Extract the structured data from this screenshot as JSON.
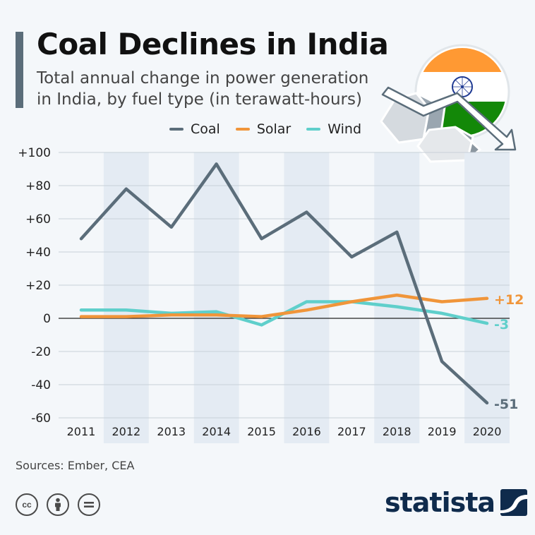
{
  "header": {
    "title": "Coal Declines in India",
    "subtitle": "Total annual change in power generation in India, by fuel type (in terawatt-hours)"
  },
  "footer": {
    "source": "Sources: Ember, CEA",
    "brand": "statista",
    "license_icons": [
      "creative-commons-icon",
      "attribution-icon",
      "no-derivatives-icon"
    ]
  },
  "illustration": {
    "icon": "india-flag-coal-decline-icon",
    "flag_colors": [
      "#ff9933",
      "#ffffff",
      "#138808"
    ]
  },
  "chart_data": {
    "type": "line",
    "x": [
      "2011",
      "2012",
      "2013",
      "2014",
      "2015",
      "2016",
      "2017",
      "2018",
      "2019",
      "2020"
    ],
    "ylim": [
      -60,
      100
    ],
    "y_ticks": [
      "+100",
      "+80",
      "+60",
      "+40",
      "+20",
      "0",
      "-20",
      "-40",
      "-60"
    ],
    "grid": true,
    "legend_position": "top",
    "series": [
      {
        "name": "Coal",
        "color": "#5b6d7a",
        "values": [
          48,
          78,
          55,
          93,
          48,
          64,
          37,
          52,
          -26,
          -51
        ],
        "end_label": "-51"
      },
      {
        "name": "Solar",
        "color": "#f0953a",
        "values": [
          1,
          1,
          2,
          2,
          1,
          5,
          10,
          14,
          10,
          12
        ],
        "end_label": "+12"
      },
      {
        "name": "Wind",
        "color": "#5fcfcb",
        "values": [
          5,
          5,
          3,
          4,
          -4,
          10,
          10,
          7,
          3,
          -3
        ],
        "end_label": "-3"
      }
    ]
  }
}
